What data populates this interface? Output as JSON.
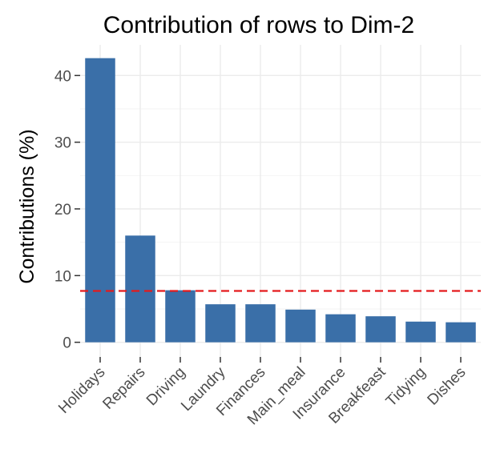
{
  "chart_data": {
    "type": "bar",
    "title": "Contribution of rows to Dim-2",
    "xlabel": "",
    "ylabel": "Contributions (%)",
    "categories": [
      "Holidays",
      "Repairs",
      "Driving",
      "Laundry",
      "Finances",
      "Main_meal",
      "Insurance",
      "Breakfeast",
      "Tidying",
      "Dishes"
    ],
    "values": [
      42.6,
      16.0,
      7.8,
      5.7,
      5.7,
      4.9,
      4.2,
      3.9,
      3.1,
      3.0
    ],
    "ylim": [
      0,
      44
    ],
    "yticks": [
      0,
      10,
      20,
      30,
      40
    ],
    "reference_line": {
      "value": 7.7,
      "style": "dashed",
      "color": "#e41a1c"
    },
    "bar_color": "#3a6fa8",
    "grid": true,
    "legend": "none"
  }
}
